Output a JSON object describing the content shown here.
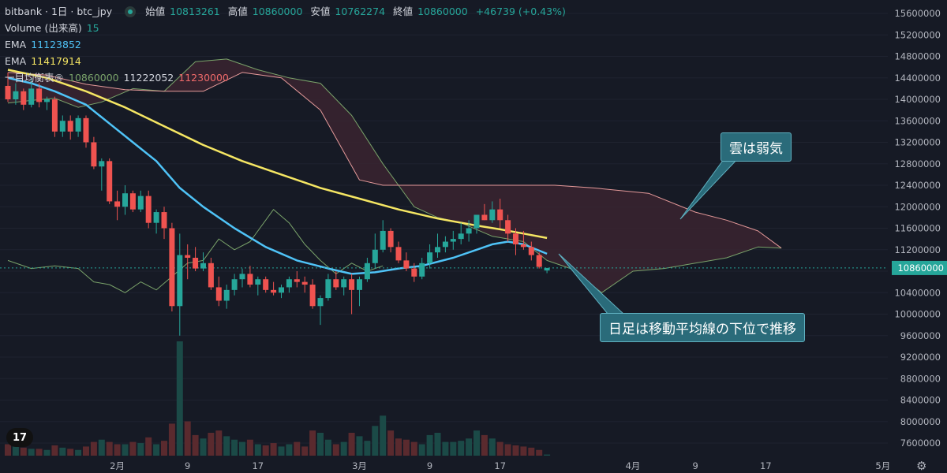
{
  "header": {
    "symbol": "bitbank · 1日 · btc_jpy",
    "ohlc": [
      {
        "label": "始値",
        "value": "10813261"
      },
      {
        "label": "高値",
        "value": "10860000"
      },
      {
        "label": "安値",
        "value": "10762274"
      },
      {
        "label": "終値",
        "value": "10860000"
      }
    ],
    "change": "+46739 (+0.43%)"
  },
  "indicators": [
    {
      "name": "Volume (出来高)",
      "values": [
        "15"
      ],
      "colors": [
        "#26a69a"
      ]
    },
    {
      "name": "EMA",
      "values": [
        "11123852"
      ],
      "colors": [
        "#4fc3f7"
      ]
    },
    {
      "name": "EMA",
      "values": [
        "11417914"
      ],
      "colors": [
        "#f5e663"
      ]
    },
    {
      "name": "一目均衡表®",
      "values": [
        "10860000",
        "11222052",
        "11230000"
      ],
      "colors": [
        "#7aa36a",
        "#d1d4dc",
        "#ef6a6a"
      ]
    }
  ],
  "annotations": [
    {
      "text": "雲は弱気"
    },
    {
      "text": "日足は移動平均線の下位で推移"
    }
  ],
  "logo_text": "17",
  "settings_icon": "gear-icon",
  "colors": {
    "background": "#161a25",
    "up": "#26a69a",
    "down": "#ef5350",
    "ema_short": "#4fc3f7",
    "ema_long": "#f5e663",
    "cloud_bear": "#3a2430",
    "span_a": "#7aa36a",
    "span_b": "#e59a9a",
    "price_line": "#26a69a"
  },
  "chart_data": {
    "type": "candlestick",
    "yaxis": {
      "ticks": [
        "15600000",
        "15200000",
        "14800000",
        "14400000",
        "14000000",
        "13600000",
        "13200000",
        "12800000",
        "12400000",
        "12000000",
        "11600000",
        "11200000",
        "10800000",
        "10400000",
        "10000000",
        "9600000",
        "9200000",
        "8800000",
        "8400000",
        "8000000",
        "7600000"
      ],
      "range": [
        7300000,
        15800000
      ]
    },
    "last_price_label": "10860000",
    "last_price": 10860000,
    "xaxis": {
      "ticks": [
        {
          "label": "2月",
          "i": 14
        },
        {
          "label": "9",
          "i": 23
        },
        {
          "label": "17",
          "i": 32
        },
        {
          "label": "3月",
          "i": 45
        },
        {
          "label": "9",
          "i": 54
        },
        {
          "label": "17",
          "i": 63
        },
        {
          "label": "4月",
          "i": 80
        },
        {
          "label": "9",
          "i": 88
        },
        {
          "label": "17",
          "i": 97
        },
        {
          "label": "5月",
          "i": 112
        }
      ]
    },
    "candles": [
      [
        14250000,
        14500000,
        13950000,
        14000000
      ],
      [
        14000000,
        14300000,
        13900000,
        14150000
      ],
      [
        14150000,
        14200000,
        13800000,
        13900000
      ],
      [
        13900000,
        14400000,
        13850000,
        14200000
      ],
      [
        14200000,
        14300000,
        13850000,
        13950000
      ],
      [
        13950000,
        14050000,
        13800000,
        14000000
      ],
      [
        14000000,
        14050000,
        13300000,
        13400000
      ],
      [
        13400000,
        13700000,
        13300000,
        13600000
      ],
      [
        13600000,
        13700000,
        13250000,
        13400000
      ],
      [
        13400000,
        13700000,
        13300000,
        13650000
      ],
      [
        13650000,
        13700000,
        13100000,
        13200000
      ],
      [
        13200000,
        13300000,
        12700000,
        12750000
      ],
      [
        12750000,
        12900000,
        12300000,
        12850000
      ],
      [
        12850000,
        12900000,
        12050000,
        12100000
      ],
      [
        12100000,
        12300000,
        11750000,
        12000000
      ],
      [
        12000000,
        12400000,
        11850000,
        12250000
      ],
      [
        12250000,
        12300000,
        11900000,
        11950000
      ],
      [
        11950000,
        12300000,
        11900000,
        12200000
      ],
      [
        12200000,
        12300000,
        11600000,
        11700000
      ],
      [
        11700000,
        11950000,
        11500000,
        11900000
      ],
      [
        11900000,
        12000000,
        11400000,
        11600000
      ],
      [
        11600000,
        11700000,
        10050000,
        10150000
      ],
      [
        10150000,
        11500000,
        9600000,
        11100000
      ],
      [
        11100000,
        11300000,
        10650000,
        11050000
      ],
      [
        11050000,
        11250000,
        10800000,
        10850000
      ],
      [
        10850000,
        11150000,
        10800000,
        10950000
      ],
      [
        10950000,
        11050000,
        10450000,
        10500000
      ],
      [
        10500000,
        10700000,
        10150000,
        10250000
      ],
      [
        10250000,
        10550000,
        10100000,
        10450000
      ],
      [
        10450000,
        10750000,
        10350000,
        10650000
      ],
      [
        10650000,
        10850000,
        10500000,
        10750000
      ],
      [
        10750000,
        10900000,
        10500000,
        10550000
      ],
      [
        10550000,
        10700000,
        10350000,
        10650000
      ],
      [
        10650000,
        10700000,
        10400000,
        10450000
      ],
      [
        10450000,
        10600000,
        10350000,
        10400000
      ],
      [
        10400000,
        10550000,
        10300000,
        10500000
      ],
      [
        10500000,
        10700000,
        10400000,
        10650000
      ],
      [
        10650000,
        10800000,
        10500000,
        10600000
      ],
      [
        10600000,
        10700000,
        10400000,
        10550000
      ],
      [
        10550000,
        10650000,
        10100000,
        10150000
      ],
      [
        10150000,
        10350000,
        9800000,
        10300000
      ],
      [
        10300000,
        10750000,
        10250000,
        10650000
      ],
      [
        10650000,
        10800000,
        10450000,
        10500000
      ],
      [
        10500000,
        10700000,
        10350000,
        10650000
      ],
      [
        10650000,
        10750000,
        10000000,
        10450000
      ],
      [
        10450000,
        10700000,
        10150000,
        10650000
      ],
      [
        10650000,
        11050000,
        10600000,
        10950000
      ],
      [
        10950000,
        11500000,
        10850000,
        11200000
      ],
      [
        11200000,
        11750000,
        11150000,
        11550000
      ],
      [
        11550000,
        11600000,
        11150000,
        11250000
      ],
      [
        11250000,
        11350000,
        10950000,
        11000000
      ],
      [
        11000000,
        11150000,
        10800000,
        10850000
      ],
      [
        10850000,
        10950000,
        10600000,
        10700000
      ],
      [
        10700000,
        11050000,
        10650000,
        10950000
      ],
      [
        10950000,
        11300000,
        10850000,
        11150000
      ],
      [
        11150000,
        11500000,
        11050000,
        11250000
      ],
      [
        11250000,
        11450000,
        11150000,
        11350000
      ],
      [
        11350000,
        11550000,
        11200000,
        11400000
      ],
      [
        11400000,
        11700000,
        11300000,
        11500000
      ],
      [
        11500000,
        11750000,
        11350000,
        11600000
      ],
      [
        11600000,
        11800000,
        11500000,
        11850000
      ],
      [
        11850000,
        12050000,
        11750000,
        11750000
      ],
      [
        11750000,
        12100000,
        11700000,
        11950000
      ],
      [
        11950000,
        12150000,
        11600000,
        11750000
      ],
      [
        11750000,
        11850000,
        11350000,
        11500000
      ],
      [
        11500000,
        11600000,
        11100000,
        11300000
      ],
      [
        11300000,
        11550000,
        11200000,
        11250000
      ],
      [
        11250000,
        11350000,
        11000000,
        11100000
      ],
      [
        11100000,
        11150000,
        10850000,
        10880000
      ],
      [
        10813261,
        10860000,
        10762274,
        10860000
      ]
    ],
    "volume": [
      0.1,
      0.08,
      0.07,
      0.06,
      0.06,
      0.05,
      0.09,
      0.07,
      0.06,
      0.05,
      0.08,
      0.12,
      0.14,
      0.12,
      0.1,
      0.1,
      0.12,
      0.11,
      0.16,
      0.1,
      0.13,
      0.28,
      1.0,
      0.3,
      0.18,
      0.15,
      0.2,
      0.22,
      0.17,
      0.14,
      0.12,
      0.14,
      0.1,
      0.09,
      0.11,
      0.08,
      0.1,
      0.12,
      0.08,
      0.22,
      0.2,
      0.14,
      0.1,
      0.12,
      0.2,
      0.17,
      0.13,
      0.26,
      0.35,
      0.22,
      0.15,
      0.14,
      0.12,
      0.1,
      0.18,
      0.2,
      0.12,
      0.12,
      0.13,
      0.15,
      0.22,
      0.18,
      0.15,
      0.12,
      0.1,
      0.09,
      0.08,
      0.07,
      0.05,
      0.01
    ],
    "ema_short": [
      [
        0,
        14400000
      ],
      [
        3,
        14300000
      ],
      [
        6,
        14150000
      ],
      [
        10,
        13900000
      ],
      [
        13,
        13550000
      ],
      [
        16,
        13200000
      ],
      [
        19,
        12850000
      ],
      [
        22,
        12350000
      ],
      [
        25,
        12000000
      ],
      [
        29,
        11600000
      ],
      [
        33,
        11250000
      ],
      [
        37,
        11000000
      ],
      [
        41,
        10850000
      ],
      [
        44,
        10750000
      ],
      [
        47,
        10780000
      ],
      [
        50,
        10850000
      ],
      [
        53,
        10900000
      ],
      [
        57,
        11050000
      ],
      [
        60,
        11200000
      ],
      [
        62,
        11300000
      ],
      [
        64,
        11350000
      ],
      [
        66,
        11300000
      ],
      [
        69,
        11123852
      ]
    ],
    "ema_long": [
      [
        0,
        14550000
      ],
      [
        5,
        14400000
      ],
      [
        10,
        14150000
      ],
      [
        15,
        13850000
      ],
      [
        20,
        13500000
      ],
      [
        25,
        13150000
      ],
      [
        30,
        12850000
      ],
      [
        35,
        12600000
      ],
      [
        40,
        12350000
      ],
      [
        45,
        12150000
      ],
      [
        50,
        11950000
      ],
      [
        55,
        11780000
      ],
      [
        60,
        11650000
      ],
      [
        63,
        11580000
      ],
      [
        66,
        11500000
      ],
      [
        69,
        11417914
      ]
    ],
    "span_a": [
      [
        0,
        13930000
      ],
      [
        3,
        13980000
      ],
      [
        6,
        14020000
      ],
      [
        9,
        13850000
      ],
      [
        12,
        13950000
      ],
      [
        16,
        14200000
      ],
      [
        20,
        14150000
      ],
      [
        24,
        14700000
      ],
      [
        28,
        14750000
      ],
      [
        32,
        14550000
      ],
      [
        36,
        14400000
      ],
      [
        40,
        14300000
      ],
      [
        44,
        13700000
      ],
      [
        48,
        12800000
      ],
      [
        52,
        12000000
      ],
      [
        55,
        11800000
      ],
      [
        58,
        11700000
      ],
      [
        62,
        11450000
      ],
      [
        66,
        11350000
      ],
      [
        69,
        11000000
      ],
      [
        72,
        10850000
      ],
      [
        76,
        10400000
      ],
      [
        80,
        10800000
      ],
      [
        84,
        10850000
      ],
      [
        88,
        10950000
      ],
      [
        92,
        11050000
      ],
      [
        96,
        11250000
      ],
      [
        99,
        11230000
      ]
    ],
    "span_b": [
      [
        0,
        14500000
      ],
      [
        5,
        14450000
      ],
      [
        10,
        14280000
      ],
      [
        15,
        14180000
      ],
      [
        20,
        14150000
      ],
      [
        25,
        14150000
      ],
      [
        30,
        14500000
      ],
      [
        35,
        14400000
      ],
      [
        40,
        13800000
      ],
      [
        45,
        12500000
      ],
      [
        48,
        12400000
      ],
      [
        58,
        12400000
      ],
      [
        65,
        12400000
      ],
      [
        70,
        12400000
      ],
      [
        75,
        12350000
      ],
      [
        82,
        12250000
      ],
      [
        88,
        11900000
      ],
      [
        92,
        11750000
      ],
      [
        96,
        11550000
      ],
      [
        99,
        11230000
      ]
    ],
    "chikou": [
      [
        0,
        11000000
      ],
      [
        3,
        10850000
      ],
      [
        6,
        10900000
      ],
      [
        9,
        10850000
      ],
      [
        11,
        10600000
      ],
      [
        13,
        10550000
      ],
      [
        15,
        10400000
      ],
      [
        17,
        10600000
      ],
      [
        19,
        10450000
      ],
      [
        21,
        10700000
      ],
      [
        23,
        10950000
      ],
      [
        25,
        11000000
      ],
      [
        27,
        11400000
      ],
      [
        29,
        11200000
      ],
      [
        31,
        11350000
      ],
      [
        34,
        11950000
      ],
      [
        36,
        11700000
      ],
      [
        38,
        11300000
      ],
      [
        40,
        11000000
      ],
      [
        42,
        10750000
      ],
      [
        44,
        10950000
      ],
      [
        46,
        10800000
      ],
      [
        48,
        10900000
      ]
    ]
  }
}
